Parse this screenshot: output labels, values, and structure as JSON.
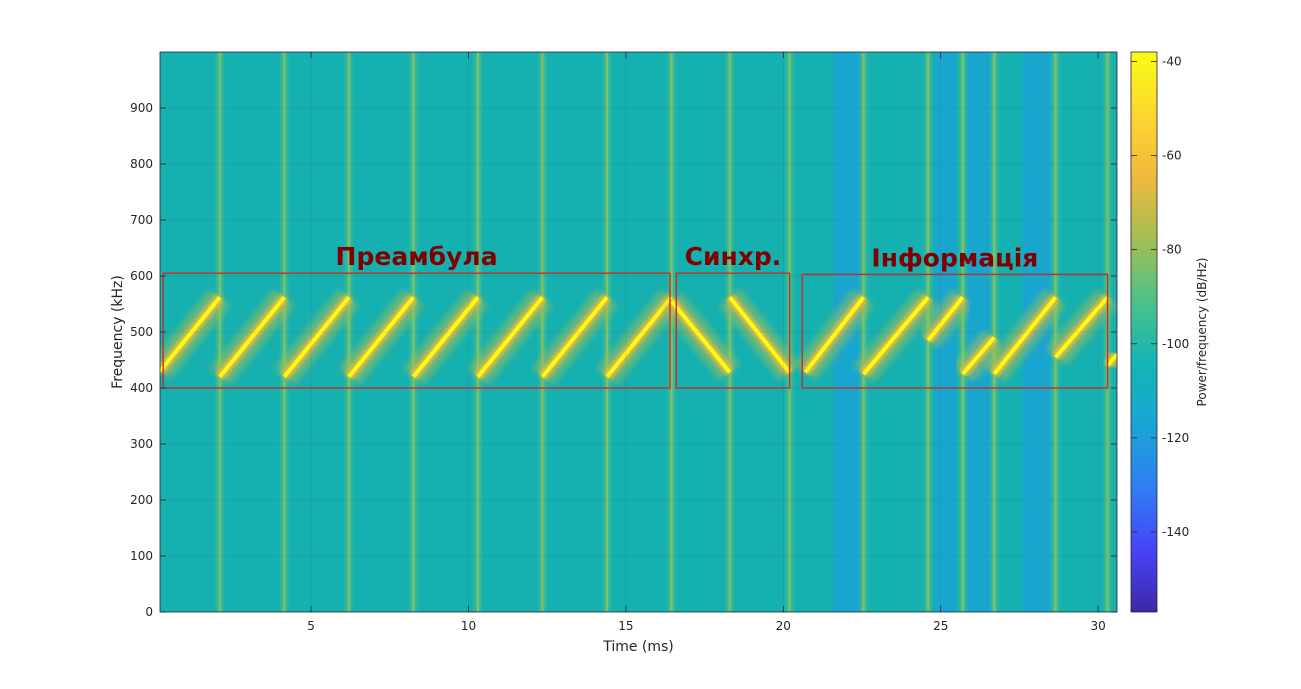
{
  "chart_data": {
    "type": "heatmap",
    "title": "",
    "xlabel": "Time (ms)",
    "ylabel": "Frequency (kHz)",
    "xlim": [
      0.2,
      30.6
    ],
    "ylim": [
      0,
      1000
    ],
    "xticks": [
      5,
      10,
      15,
      20,
      25,
      30
    ],
    "xtick_labels": [
      "5",
      "10",
      "15",
      "20",
      "25",
      "30"
    ],
    "yticks": [
      0,
      100,
      200,
      300,
      400,
      500,
      600,
      700,
      800,
      900
    ],
    "ytick_labels": [
      "0",
      "100",
      "200",
      "300",
      "400",
      "500",
      "600",
      "700",
      "800",
      "900"
    ],
    "grid": true,
    "background_color": "#15b0b0",
    "colorbar": {
      "label": "Power/frequency (dB/Hz)",
      "range": [
        -157,
        -38
      ],
      "ticks": [
        -40,
        -60,
        -80,
        -100,
        -120,
        -140
      ],
      "tick_labels": [
        "-40",
        "-60",
        "-80",
        "-100",
        "-120",
        "-140"
      ],
      "colormap": [
        "#3e26a8",
        "#4743f7",
        "#2f7ef2",
        "#1aa5d4",
        "#14b5b5",
        "#4cc18a",
        "#a5be53",
        "#f0b93e",
        "#fdd72f",
        "#f9fb15"
      ]
    },
    "chirps": [
      {
        "t0": 0.2,
        "t1": 2.1,
        "f0": 430,
        "f1": 562
      },
      {
        "t0": 2.1,
        "t1": 4.15,
        "f0": 420,
        "f1": 562
      },
      {
        "t0": 4.15,
        "t1": 6.2,
        "f0": 420,
        "f1": 562
      },
      {
        "t0": 6.2,
        "t1": 8.25,
        "f0": 420,
        "f1": 562
      },
      {
        "t0": 8.25,
        "t1": 10.3,
        "f0": 420,
        "f1": 562
      },
      {
        "t0": 10.3,
        "t1": 12.35,
        "f0": 420,
        "f1": 562
      },
      {
        "t0": 12.35,
        "t1": 14.4,
        "f0": 420,
        "f1": 562
      },
      {
        "t0": 14.4,
        "t1": 16.45,
        "f0": 420,
        "f1": 562
      },
      {
        "t0": 16.45,
        "t1": 18.3,
        "f0": 555,
        "f1": 428
      },
      {
        "t0": 18.3,
        "t1": 20.2,
        "f0": 562,
        "f1": 428
      },
      {
        "t0": 20.7,
        "t1": 22.55,
        "f0": 428,
        "f1": 562
      },
      {
        "t0": 22.55,
        "t1": 24.6,
        "f0": 425,
        "f1": 562
      },
      {
        "t0": 24.6,
        "t1": 25.7,
        "f0": 485,
        "f1": 562
      },
      {
        "t0": 25.7,
        "t1": 26.7,
        "f0": 425,
        "f1": 490
      },
      {
        "t0": 26.7,
        "t1": 28.65,
        "f0": 425,
        "f1": 562
      },
      {
        "t0": 28.65,
        "t1": 30.3,
        "f0": 455,
        "f1": 562
      },
      {
        "t0": 30.3,
        "t1": 30.6,
        "f0": 440,
        "f1": 460
      }
    ],
    "transients_ms": [
      2.1,
      4.15,
      6.2,
      8.25,
      10.3,
      12.35,
      14.4,
      16.45,
      18.3,
      20.2,
      22.55,
      24.6,
      25.7,
      26.7,
      28.65,
      30.3
    ],
    "low_power_bands_ms": [
      [
        21.6,
        22.5
      ],
      [
        24.8,
        25.5
      ],
      [
        25.8,
        26.6
      ],
      [
        27.6,
        28.5
      ]
    ],
    "regions": [
      {
        "label": "Преамбула",
        "t0": 0.3,
        "t1": 16.4,
        "f0": 400,
        "f1": 605
      },
      {
        "label": "Синхр.",
        "t0": 16.6,
        "t1": 20.2,
        "f0": 400,
        "f1": 605
      },
      {
        "label": "Інформація",
        "t0": 20.6,
        "t1": 30.3,
        "f0": 400,
        "f1": 603
      }
    ]
  }
}
